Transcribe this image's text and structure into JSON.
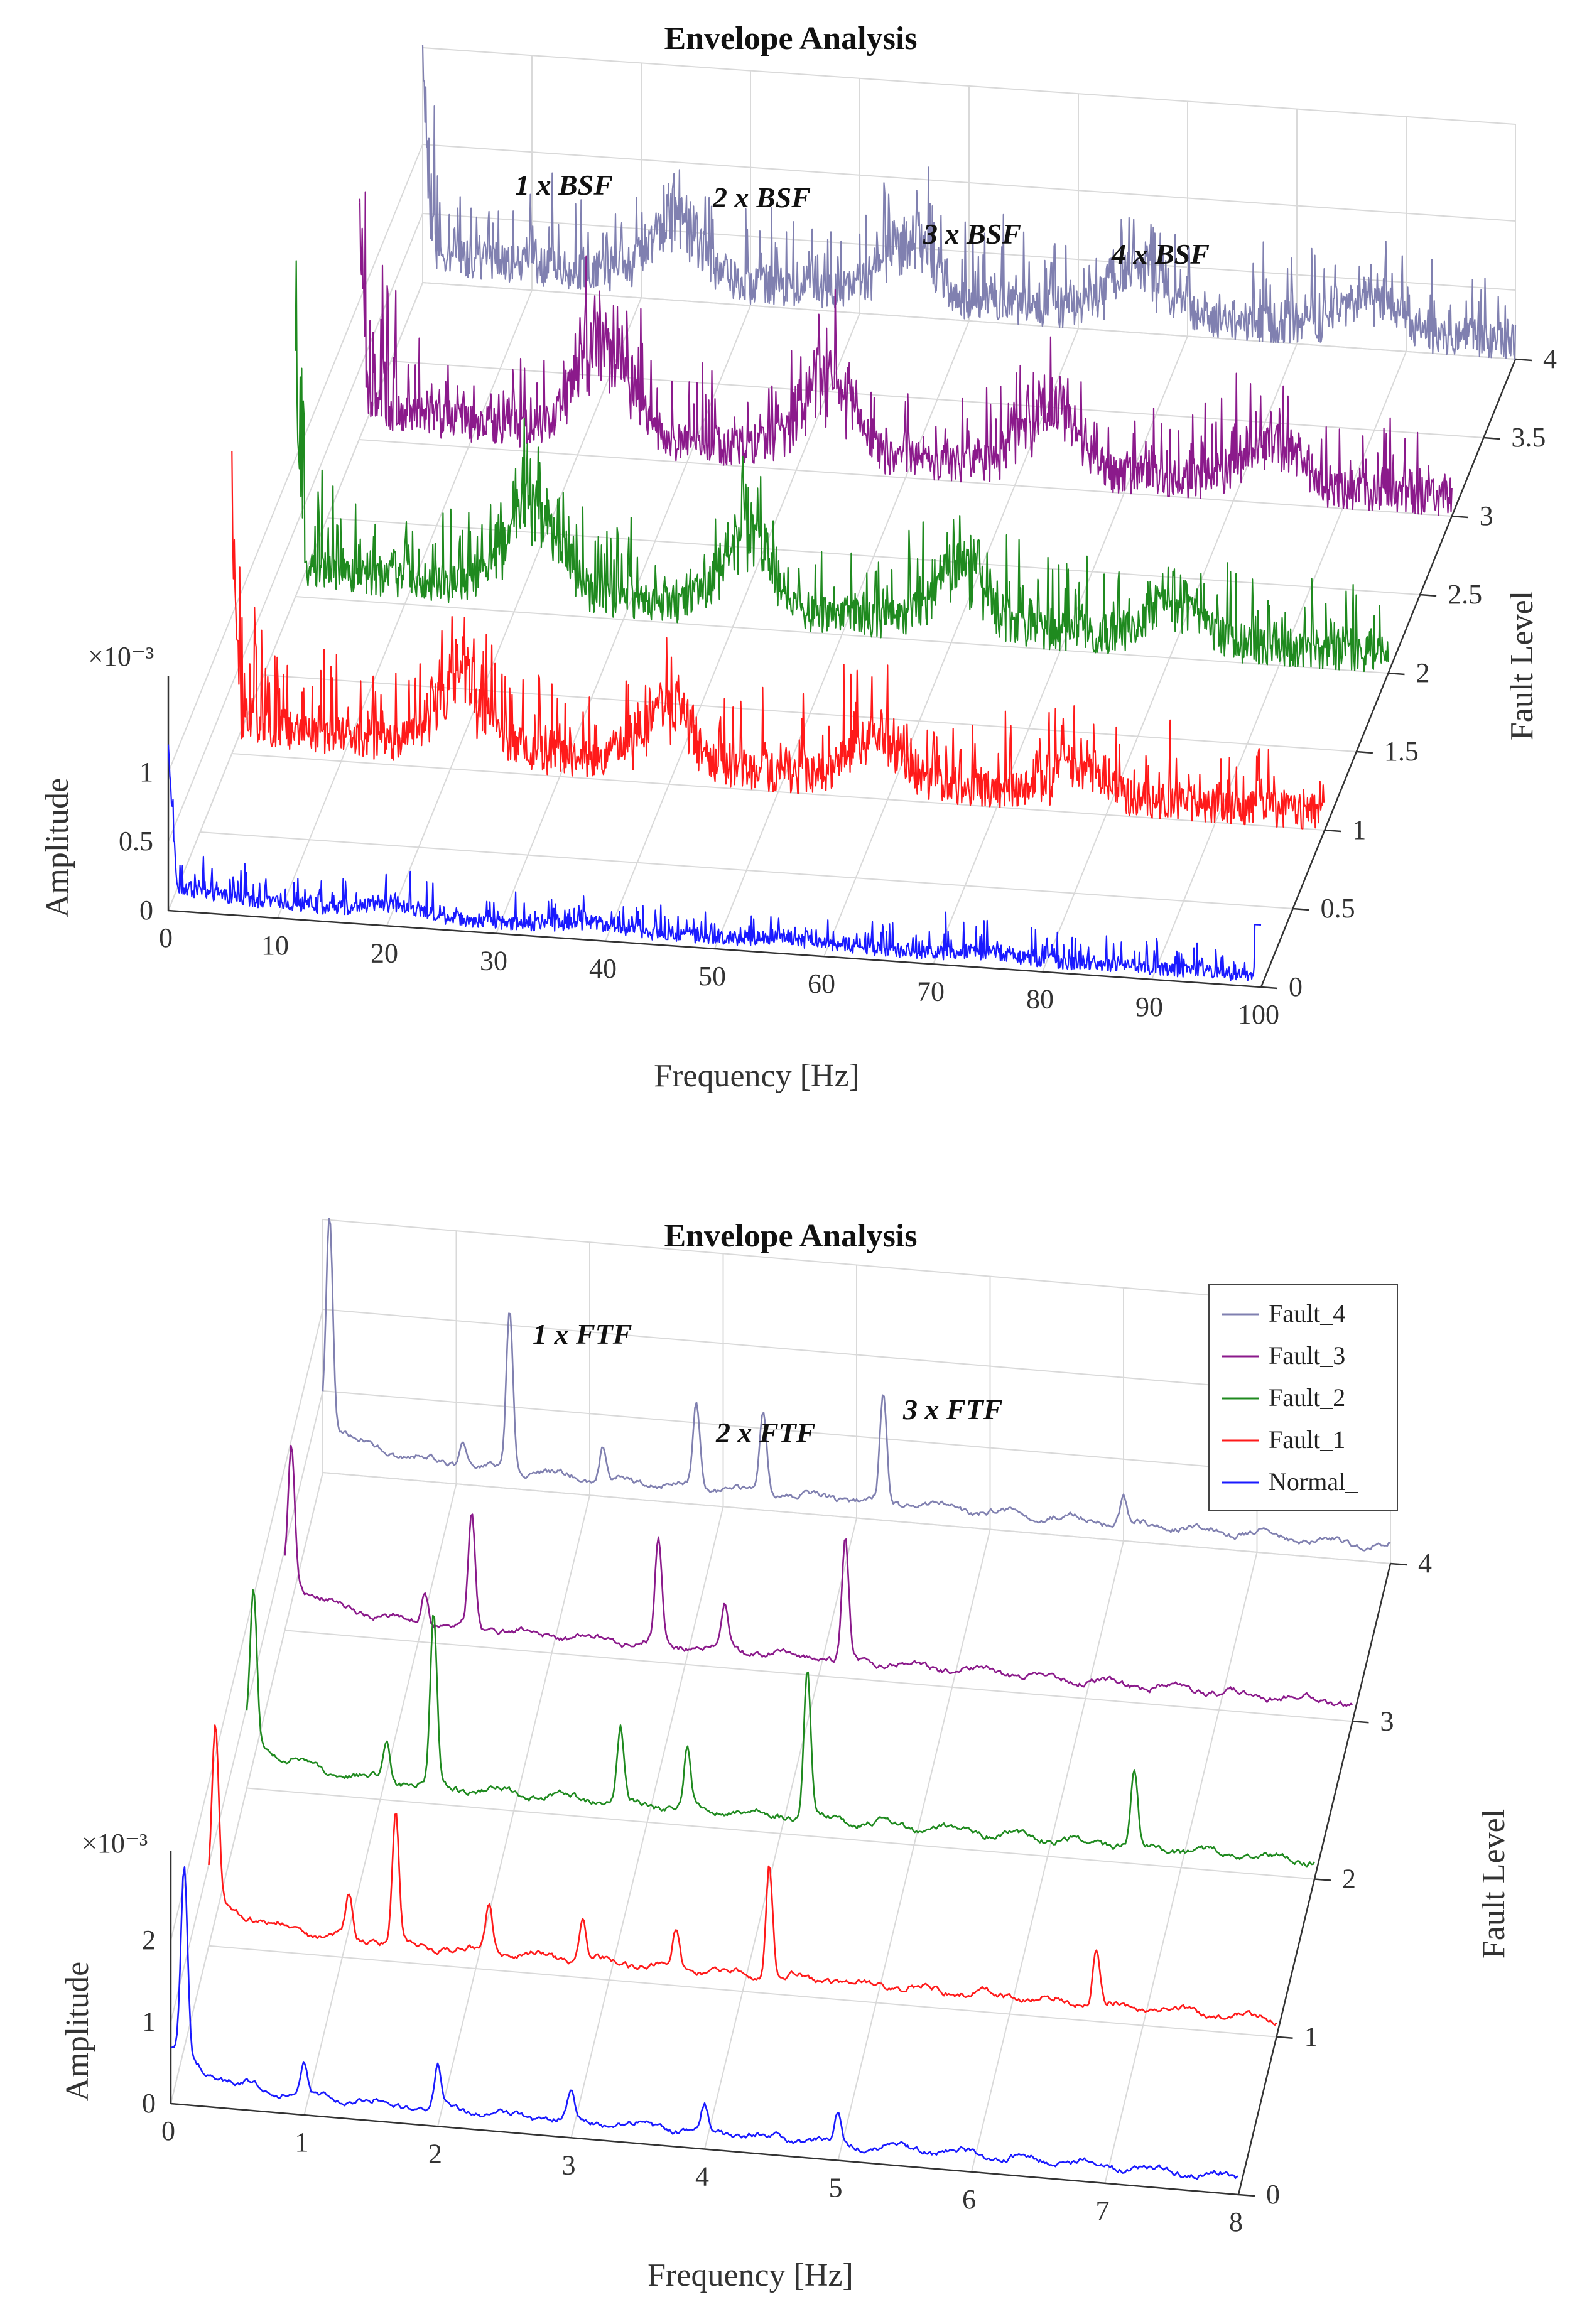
{
  "chart_data": [
    {
      "type": "line",
      "view": "3d-waterfall",
      "title": "Envelope Analysis",
      "xlabel": "Frequency [Hz]",
      "ylabel": "Fault Level",
      "zlabel": "Amplitude",
      "zexponent": "×10⁻³",
      "xlim": [
        0,
        100
      ],
      "ylim": [
        0,
        4
      ],
      "zlim": [
        0,
        1.3
      ],
      "xticks": [
        "0",
        "10",
        "20",
        "30",
        "40",
        "50",
        "60",
        "70",
        "80",
        "90",
        "100"
      ],
      "yticks": [
        "0",
        "0.5",
        "1",
        "1.5",
        "2",
        "2.5",
        "3",
        "3.5",
        "4"
      ],
      "zticks": [
        "0",
        "0.5",
        "1"
      ],
      "base_frequency": 12.2,
      "harmonic_peaks_by_level": [
        [
          0.08,
          0.05,
          0.04,
          0.03
        ],
        [
          0.55,
          0.45,
          0.35,
          0.25
        ],
        [
          0.72,
          0.6,
          0.45,
          0.32
        ],
        [
          0.78,
          0.62,
          0.5,
          0.35
        ],
        [
          0.5,
          0.45,
          0.4,
          0.3
        ]
      ],
      "series": [
        {
          "name": "Normal_",
          "level": 0,
          "color": "#1a1aff"
        },
        {
          "name": "Fault_1",
          "level": 1,
          "color": "#ff1a1a"
        },
        {
          "name": "Fault_2",
          "level": 2,
          "color": "#1f8a1f"
        },
        {
          "name": "Fault_3",
          "level": 3,
          "color": "#8b1a8b"
        },
        {
          "name": "Fault_4",
          "level": 4,
          "color": "#8080b0"
        }
      ],
      "annotations": [
        {
          "text": "1 x BSF",
          "x": 28,
          "level": 4
        },
        {
          "text": "2 x BSF",
          "x": 42,
          "level": 4
        },
        {
          "text": "3 x BSF",
          "x": 63,
          "level": 4
        },
        {
          "text": "4 x BSF",
          "x": 80,
          "level": 4
        }
      ]
    },
    {
      "type": "line",
      "view": "3d-waterfall",
      "title": "Envelope Analysis",
      "xlabel": "Frequency [Hz]",
      "ylabel": "Fault Level",
      "zlabel": "Amplitude",
      "zexponent": "×10⁻³",
      "xlim": [
        0,
        8
      ],
      "ylim": [
        0,
        4
      ],
      "zlim": [
        0,
        2.6
      ],
      "xticks": [
        "0",
        "1",
        "2",
        "3",
        "4",
        "5",
        "6",
        "7",
        "8"
      ],
      "yticks": [
        "0",
        "1",
        "2",
        "3",
        "4"
      ],
      "zticks": [
        "0",
        "1",
        "2"
      ],
      "legend": {
        "position": "top-right",
        "entries": [
          "Fault_4",
          "Fault_3",
          "Fault_2",
          "Fault_1",
          "Normal_"
        ]
      },
      "series": [
        {
          "name": "Normal_",
          "level": 0,
          "color": "#1a1aff",
          "peaks": [
            [
              0.1,
              2.3
            ],
            [
              1.0,
              0.35
            ],
            [
              2.0,
              0.5
            ],
            [
              3.0,
              0.3
            ],
            [
              4.0,
              0.3
            ],
            [
              5.0,
              0.35
            ]
          ]
        },
        {
          "name": "Fault_1",
          "level": 1,
          "color": "#ff1a1a",
          "peaks": [
            [
              0.05,
              2.1
            ],
            [
              1.05,
              0.5
            ],
            [
              1.4,
              1.6
            ],
            [
              2.1,
              0.6
            ],
            [
              2.8,
              0.5
            ],
            [
              3.5,
              0.45
            ],
            [
              4.2,
              1.4
            ],
            [
              6.65,
              0.7
            ]
          ]
        },
        {
          "name": "Fault_2",
          "level": 2,
          "color": "#1f8a1f",
          "peaks": [
            [
              0.05,
              1.8
            ],
            [
              1.05,
              0.5
            ],
            [
              1.4,
              2.1
            ],
            [
              2.8,
              0.9
            ],
            [
              3.3,
              0.7
            ],
            [
              4.2,
              1.8
            ],
            [
              6.65,
              0.9
            ]
          ]
        },
        {
          "name": "Fault_3",
          "level": 3,
          "color": "#8b1a8b",
          "peaks": [
            [
              0.05,
              1.7
            ],
            [
              1.05,
              0.4
            ],
            [
              1.4,
              1.4
            ],
            [
              2.8,
              1.3
            ],
            [
              3.3,
              0.5
            ],
            [
              4.2,
              1.5
            ]
          ]
        },
        {
          "name": "Fault_4",
          "level": 4,
          "color": "#8080b0",
          "peaks": [
            [
              0.05,
              2.6
            ],
            [
              1.05,
              0.3
            ],
            [
              1.4,
              2.0
            ],
            [
              2.1,
              0.4
            ],
            [
              2.8,
              1.0
            ],
            [
              3.3,
              1.0
            ],
            [
              4.2,
              1.3
            ],
            [
              6.0,
              0.3
            ]
          ]
        }
      ],
      "annotations": [
        {
          "text": "1 x FTF",
          "x": 1.4,
          "level": 4
        },
        {
          "text": "2 x FTF",
          "x": 2.8,
          "level": 4
        },
        {
          "text": "3 x FTF",
          "x": 4.2,
          "level": 4
        }
      ]
    }
  ]
}
